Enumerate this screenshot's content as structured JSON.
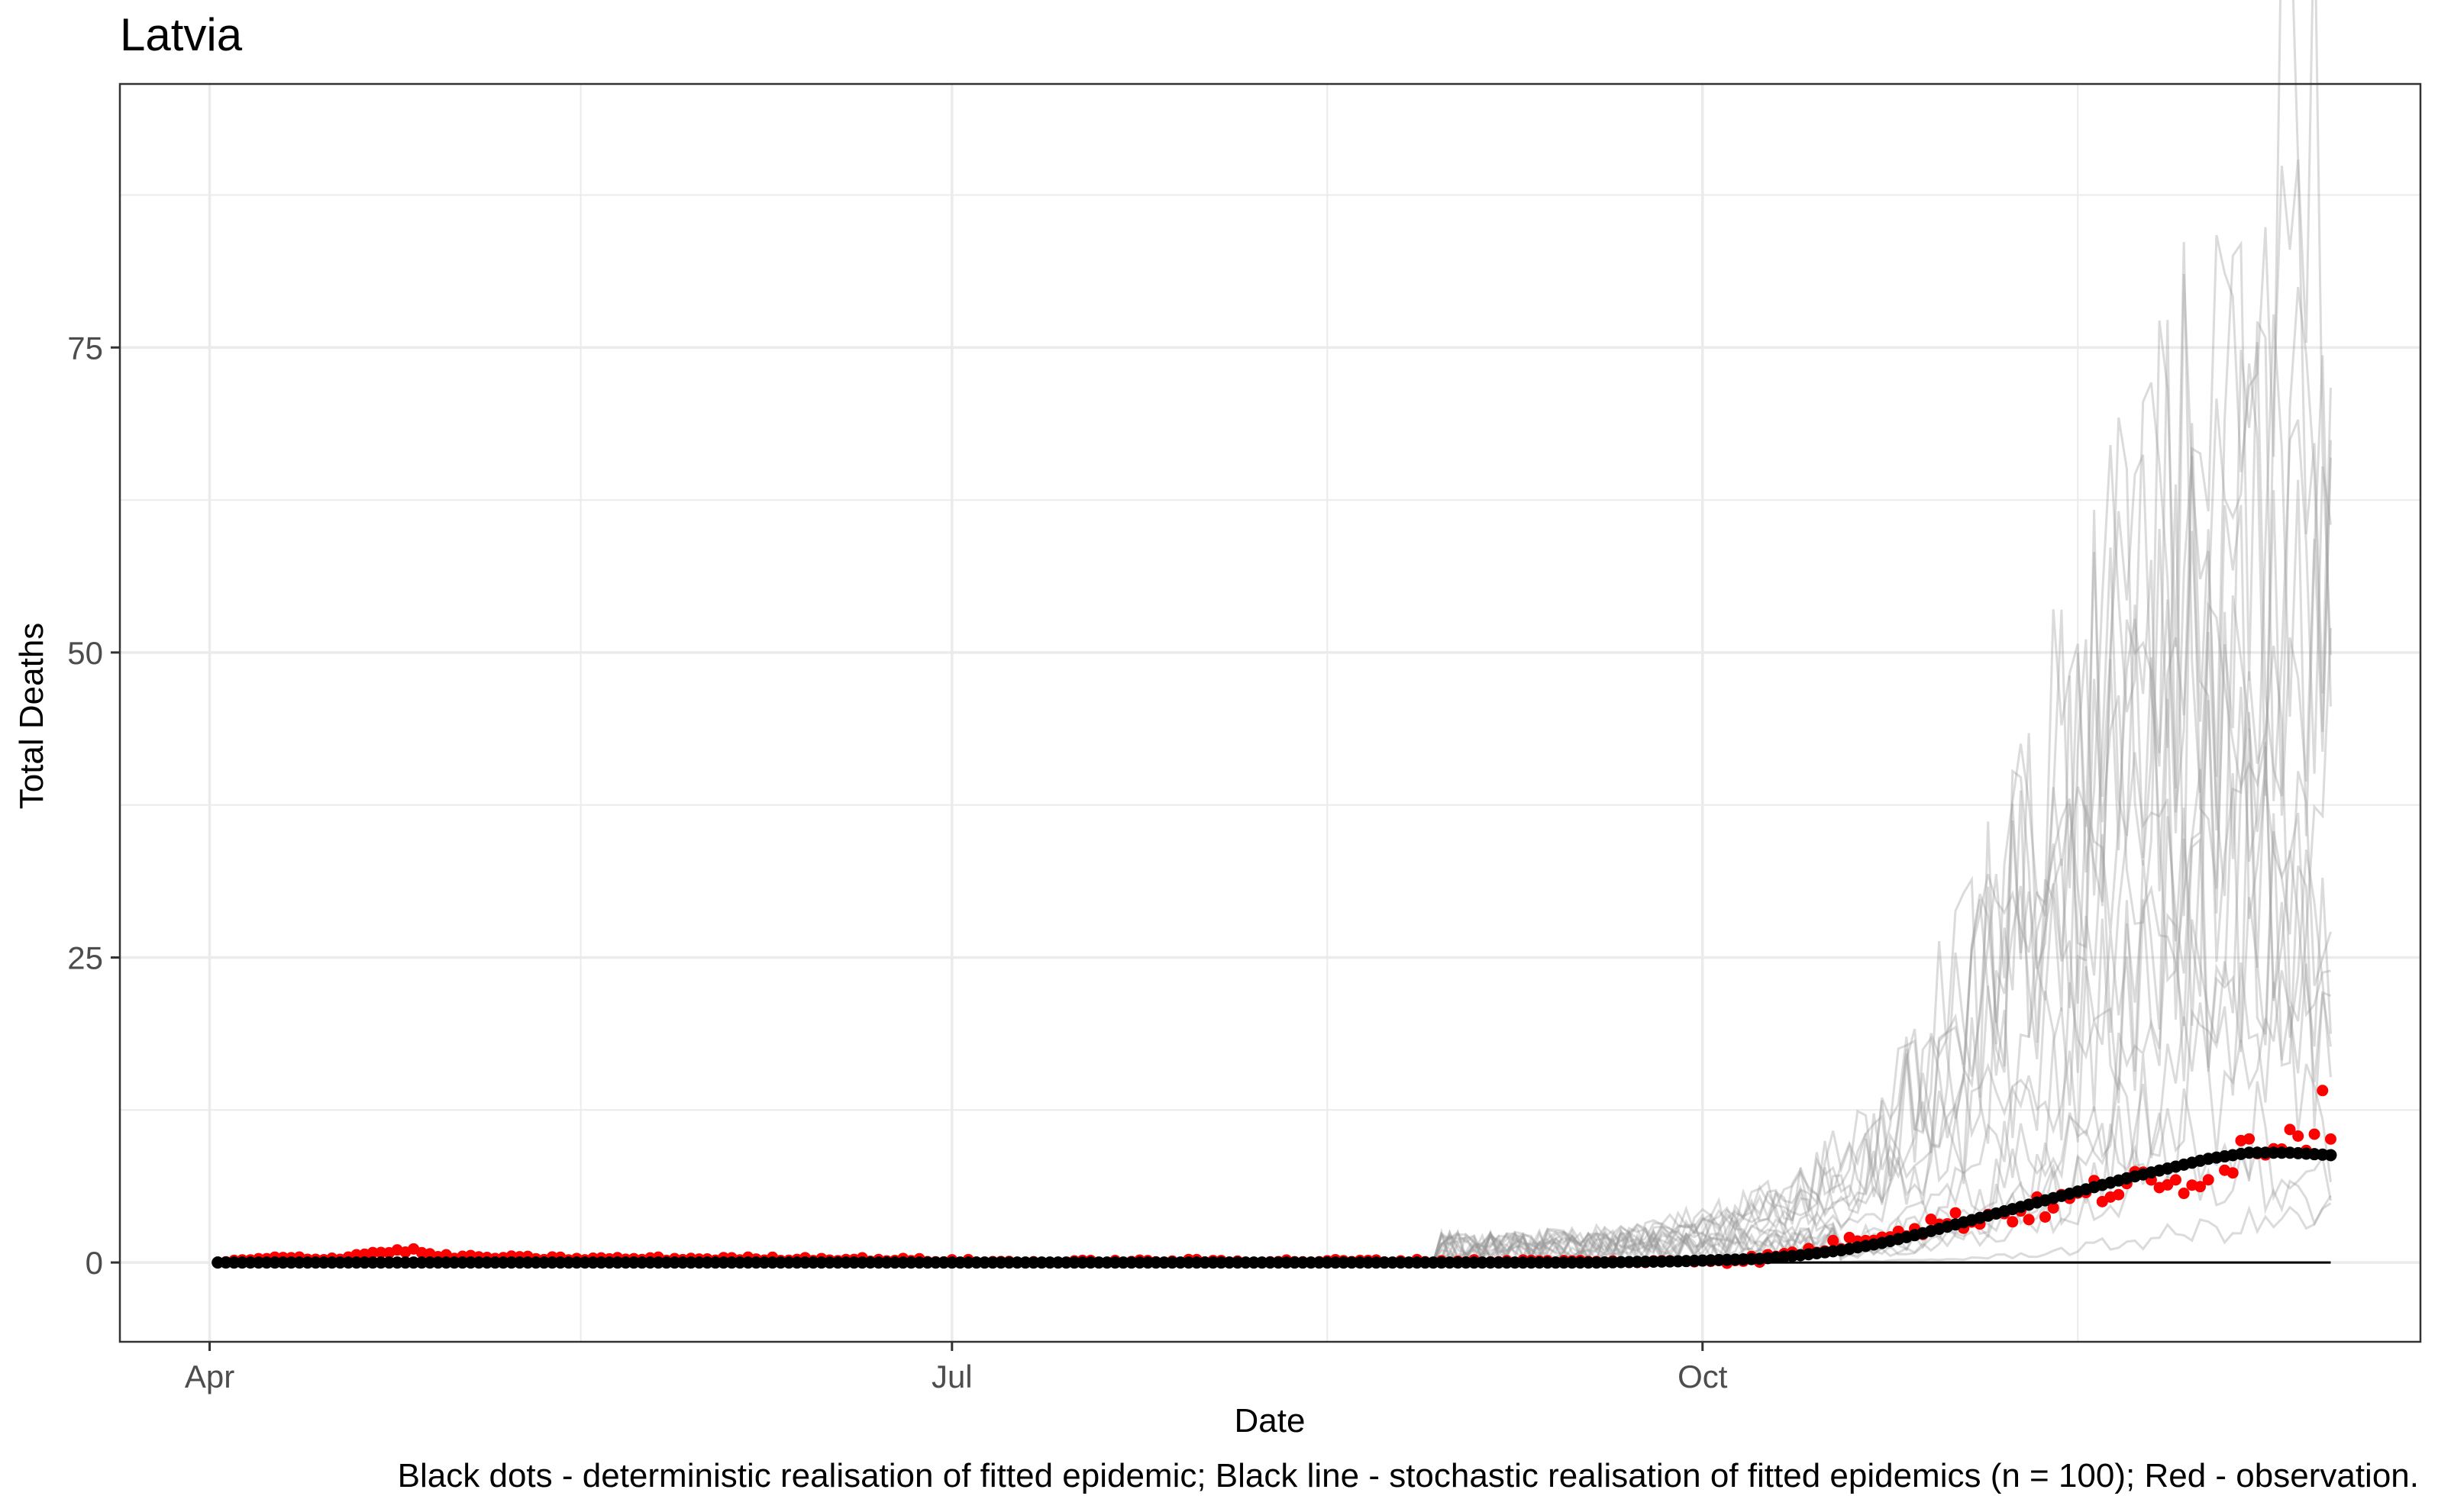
{
  "chart_data": {
    "type": "scatter",
    "title": "Latvia",
    "xlabel": "Date",
    "ylabel": "Total Deaths",
    "caption": "Black dots - deterministic realisation of fitted epidemic; Black line - stochastic realisation of fitted epidemics (n = 100); Red - observation.",
    "x_ticks": [
      {
        "label": "Apr",
        "day": 0
      },
      {
        "label": "Jul",
        "day": 91
      },
      {
        "label": "Oct",
        "day": 183
      }
    ],
    "x_minor_days": [
      45.5,
      137,
      229
    ],
    "xlim_days": [
      -11,
      271
    ],
    "ylim": [
      -6.5,
      96.6
    ],
    "y_ticks": [
      0,
      25,
      50,
      75
    ],
    "y_minor": [
      12.5,
      37.5,
      62.5,
      87.5
    ],
    "start_day": 1,
    "end_day": 260,
    "baseline": 0,
    "colors": {
      "observation": "#ff0000",
      "deterministic": "#000000",
      "stochastic": "#999999",
      "grid": "#ebebeb",
      "panel_border": "#333333",
      "axis_text": "#4d4d4d"
    },
    "series": [
      {
        "name": "Observation",
        "mark": "red-dots",
        "description": "Daily observed deaths, near 0 through September, rising from mid-October to ~13 by mid-December",
        "anchors": [
          [
            1,
            0
          ],
          [
            5,
            0.2
          ],
          [
            10,
            0.4
          ],
          [
            15,
            0.3
          ],
          [
            20,
            0.8
          ],
          [
            25,
            1
          ],
          [
            28,
            0.5
          ],
          [
            35,
            0.4
          ],
          [
            45,
            0.3
          ],
          [
            60,
            0.3
          ],
          [
            75,
            0.3
          ],
          [
            85,
            0.2
          ],
          [
            100,
            0
          ],
          [
            120,
            0.1
          ],
          [
            150,
            0.1
          ],
          [
            165,
            0.1
          ],
          [
            175,
            0
          ],
          [
            185,
            0.2
          ],
          [
            190,
            0.3
          ],
          [
            195,
            0.8
          ],
          [
            200,
            1.5
          ],
          [
            205,
            2.5
          ],
          [
            210,
            3
          ],
          [
            215,
            3.5
          ],
          [
            220,
            4
          ],
          [
            225,
            4.5
          ],
          [
            230,
            5.5
          ],
          [
            235,
            6.5
          ],
          [
            240,
            6
          ],
          [
            245,
            8
          ],
          [
            250,
            9.5
          ],
          [
            255,
            11
          ],
          [
            260,
            12
          ]
        ]
      },
      {
        "name": "Deterministic realisation",
        "mark": "black-dots",
        "description": "Smooth fitted curve, ~0 until October, rising to ~9 by late November then plateauing",
        "anchors": [
          [
            1,
            0
          ],
          [
            170,
            0
          ],
          [
            180,
            0.1
          ],
          [
            190,
            0.3
          ],
          [
            195,
            0.6
          ],
          [
            200,
            1
          ],
          [
            205,
            1.6
          ],
          [
            210,
            2.4
          ],
          [
            215,
            3.3
          ],
          [
            220,
            4.2
          ],
          [
            225,
            5.1
          ],
          [
            230,
            6
          ],
          [
            235,
            6.9
          ],
          [
            240,
            7.7
          ],
          [
            245,
            8.5
          ],
          [
            250,
            9
          ],
          [
            255,
            9
          ],
          [
            260,
            8.8
          ]
        ]
      },
      {
        "name": "Stochastic realisations (n = 100)",
        "mark": "grey-lines",
        "description": "Noisy simulated trajectories fanning out from October; most end between 5 and 60, a few peaking near 90",
        "peaks": [
          92,
          72,
          66,
          61,
          58,
          52,
          48,
          45,
          42,
          38,
          35,
          30,
          24,
          18,
          12,
          8,
          4
        ]
      }
    ]
  }
}
